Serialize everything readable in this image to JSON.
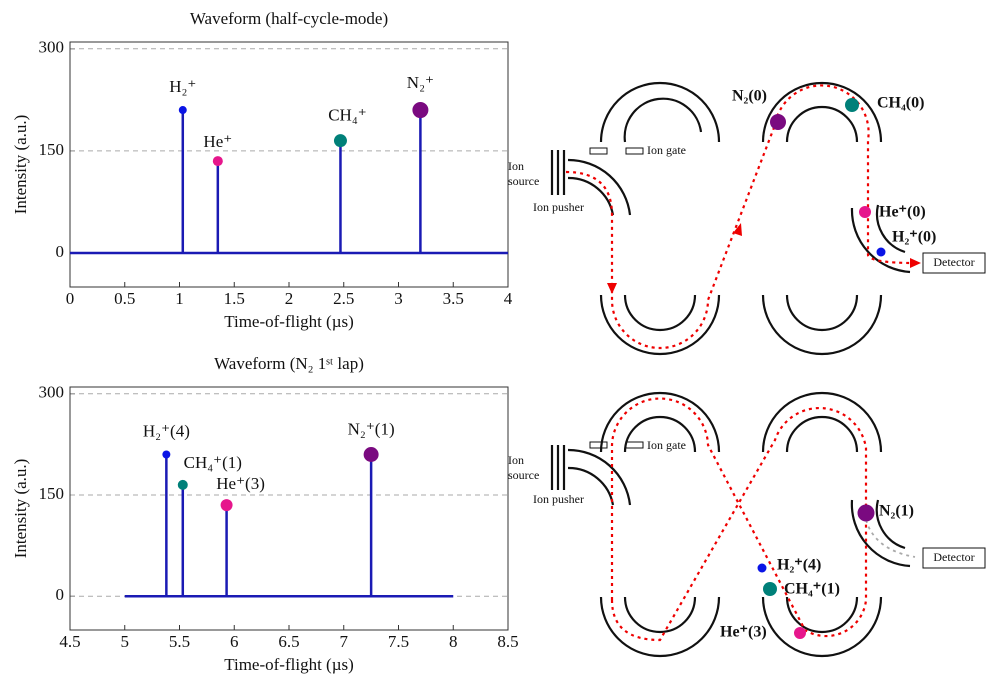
{
  "chart_data": [
    {
      "type": "stem",
      "title": "Waveform (half-cycle-mode)",
      "x_label": "Time-of-flight (µs)",
      "y_label": "Intensity (a.u.)",
      "xlim": [
        0,
        4
      ],
      "xticks": [
        0,
        0.5,
        1,
        1.5,
        2,
        2.5,
        3,
        3.5,
        4
      ],
      "ylim": [
        -50,
        310
      ],
      "yticks": [
        0,
        150,
        300
      ],
      "grid": true,
      "baseline": [
        0,
        4
      ],
      "line_color": "#1a1ab4",
      "series": [
        {
          "name": "H₂⁺",
          "color": "#0a14e6",
          "marker_size": 4,
          "x": [
            1.03
          ],
          "values": [
            210
          ]
        },
        {
          "name": "He⁺",
          "color": "#e6168c",
          "marker_size": 5,
          "x": [
            1.35
          ],
          "values": [
            135
          ]
        },
        {
          "name": "CH₄⁺",
          "color": "#008079",
          "marker_size": 6.5,
          "x": [
            2.47
          ],
          "values": [
            165
          ]
        },
        {
          "name": "N₂⁺",
          "color": "#7a0a80",
          "marker_size": 8,
          "x": [
            3.2
          ],
          "values": [
            210
          ]
        }
      ]
    },
    {
      "type": "stem",
      "title": "Waveform (N₂ 1ˢᵗ lap)",
      "x_label": "Time-of-flight (µs)",
      "y_label": "Intensity (a.u.)",
      "xlim": [
        4.5,
        8.5
      ],
      "xticks": [
        4.5,
        5,
        5.5,
        6,
        6.5,
        7,
        7.5,
        8,
        8.5
      ],
      "ylim": [
        -50,
        310
      ],
      "yticks": [
        0,
        150,
        300
      ],
      "grid": true,
      "baseline": [
        5,
        8
      ],
      "line_color": "#1a1ab4",
      "series": [
        {
          "name": "H₂⁺(4)",
          "color": "#0a14e6",
          "marker_size": 4,
          "x": [
            5.38
          ],
          "values": [
            210
          ]
        },
        {
          "name": "CH₄⁺(1)",
          "color": "#008079",
          "marker_size": 5,
          "x": [
            5.53
          ],
          "values": [
            165
          ]
        },
        {
          "name": "He⁺(3)",
          "color": "#e6168c",
          "marker_size": 6,
          "x": [
            5.93
          ],
          "values": [
            135
          ]
        },
        {
          "name": "N₂⁺(1)",
          "color": "#7a0a80",
          "marker_size": 7.5,
          "x": [
            7.25
          ],
          "values": [
            210
          ]
        }
      ]
    }
  ],
  "diagram_top": {
    "ion_source": [
      "Ion",
      "source"
    ],
    "ion_pusher": "Ion pusher",
    "ion_gate": "Ion gate",
    "detector": "Detector",
    "n2": "N₂(0)",
    "ch4": "CH₄(0)",
    "he": "He⁺(0)",
    "h2": "H₂⁺(0)"
  },
  "diagram_bottom": {
    "ion_source": [
      "Ion",
      "source"
    ],
    "ion_pusher": "Ion pusher",
    "ion_gate": "Ion gate",
    "detector": "Detector",
    "n2": "N₂(1)",
    "h2": "H₂⁺(4)",
    "ch4": "CH₄⁺(1)",
    "he": "He⁺(3)"
  }
}
